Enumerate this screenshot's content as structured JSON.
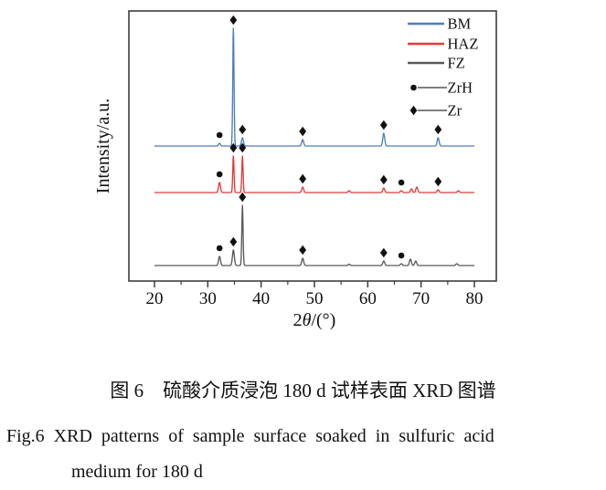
{
  "caption": {
    "chinese": "图 6　硫酸介质浸泡 180 d 试样表面 XRD 图谱",
    "english_line1": "Fig.6  XRD patterns of sample surface soaked in sulfuric acid",
    "english_line2": "medium for 180 d"
  },
  "chart_data": {
    "type": "line",
    "title": "",
    "xlabel": "2θ/(°)",
    "ylabel": "Intensity/a.u.",
    "x_axis": {
      "min": 15.2,
      "max": 84.1,
      "major_ticks": [
        20,
        30,
        40,
        50,
        60,
        70,
        80
      ],
      "minor_ticks": [
        25,
        35,
        45,
        55,
        65,
        75
      ]
    },
    "y_axis": {
      "type": "arbitrary-units",
      "ticks": []
    },
    "grid": false,
    "axis_color": "#3d3d3d",
    "marker_color": "#111111",
    "legend": {
      "position": "top-right-inside",
      "entries": [
        {
          "label": "BM",
          "swatch": "line",
          "color": "#4d7ebf"
        },
        {
          "label": "HAZ",
          "swatch": "line",
          "color": "#e23b38"
        },
        {
          "label": "FZ",
          "swatch": "line",
          "color": "#5a5a5a"
        },
        {
          "label": "ZrH",
          "swatch": "circle-line",
          "color": "#111111"
        },
        {
          "label": "Zr",
          "swatch": "diamond-line",
          "color": "#111111"
        }
      ]
    },
    "phase_markers": {
      "circle": "ZrH",
      "diamond": "Zr"
    },
    "series": [
      {
        "name": "BM",
        "color": "#4d7ebf",
        "baseline_y": 160,
        "peaks": [
          {
            "two_theta": 32.2,
            "height": 3,
            "marker": "circle"
          },
          {
            "two_theta": 34.8,
            "height": 129,
            "marker": "diamond"
          },
          {
            "two_theta": 36.5,
            "height": 9,
            "marker": "diamond"
          },
          {
            "two_theta": 47.8,
            "height": 7,
            "marker": "diamond"
          },
          {
            "two_theta": 63.0,
            "height": 14,
            "marker": "diamond"
          },
          {
            "two_theta": 73.2,
            "height": 9,
            "marker": "diamond"
          }
        ]
      },
      {
        "name": "HAZ",
        "color": "#e23b38",
        "baseline_y": 211,
        "peaks": [
          {
            "two_theta": 32.2,
            "height": 11,
            "marker": "circle"
          },
          {
            "two_theta": 34.8,
            "height": 40,
            "marker": "diamond"
          },
          {
            "two_theta": 36.5,
            "height": 40,
            "marker": "diamond"
          },
          {
            "two_theta": 47.8,
            "height": 6,
            "marker": "diamond"
          },
          {
            "two_theta": 56.5,
            "height": 2
          },
          {
            "two_theta": 63.0,
            "height": 5,
            "marker": "diamond"
          },
          {
            "two_theta": 66.3,
            "height": 2,
            "marker": "circle"
          },
          {
            "two_theta": 68.2,
            "height": 4
          },
          {
            "two_theta": 69.2,
            "height": 6
          },
          {
            "two_theta": 73.2,
            "height": 3,
            "marker": "diamond"
          },
          {
            "two_theta": 77.0,
            "height": 2
          }
        ]
      },
      {
        "name": "FZ",
        "color": "#5a5a5a",
        "baseline_y": 291,
        "peaks": [
          {
            "two_theta": 32.2,
            "height": 10,
            "marker": "circle"
          },
          {
            "two_theta": 34.8,
            "height": 17,
            "marker": "diamond"
          },
          {
            "two_theta": 36.5,
            "height": 66,
            "marker": "diamond"
          },
          {
            "two_theta": 47.8,
            "height": 8,
            "marker": "diamond"
          },
          {
            "two_theta": 56.5,
            "height": 1.5
          },
          {
            "two_theta": 63.0,
            "height": 5,
            "marker": "diamond"
          },
          {
            "two_theta": 66.3,
            "height": 2,
            "marker": "circle"
          },
          {
            "two_theta": 68.0,
            "height": 7
          },
          {
            "two_theta": 69.0,
            "height": 5
          },
          {
            "two_theta": 76.7,
            "height": 2
          }
        ]
      }
    ]
  }
}
